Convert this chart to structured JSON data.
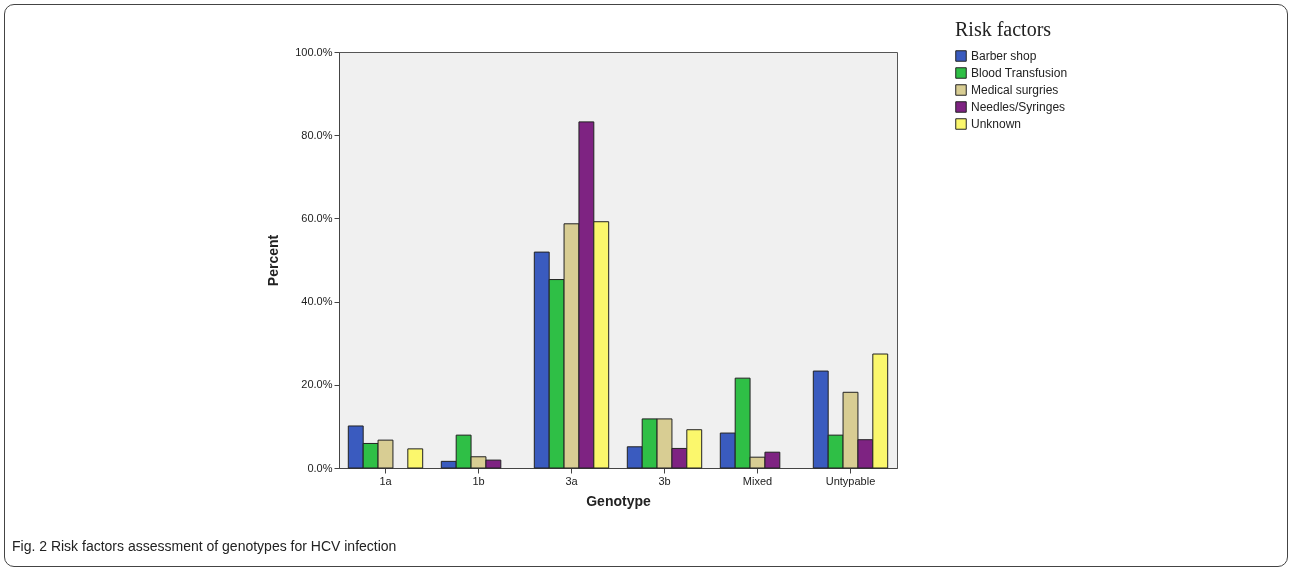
{
  "chart_data": {
    "type": "bar",
    "xlabel": "Genotype",
    "ylabel": "Percent",
    "legend_title": "Risk factors",
    "legend": "top right",
    "categories": [
      "1a",
      "1b",
      "3a",
      "3b",
      "Mixed",
      "Untypable"
    ],
    "series": [
      {
        "name": "Barber shop",
        "color": "#3a5bbf",
        "values": [
          10.1,
          1.6,
          51.9,
          5.1,
          8.4,
          23.3
        ]
      },
      {
        "name": "Blood Transfusion",
        "color": "#2fbf46",
        "values": [
          5.9,
          7.9,
          45.3,
          11.8,
          21.6,
          7.9
        ]
      },
      {
        "name": "Medical surgries",
        "color": "#d8cd93",
        "values": [
          6.7,
          2.7,
          58.7,
          11.8,
          2.6,
          18.2
        ]
      },
      {
        "name": "Needles/Syringes",
        "color": "#7e2382",
        "values": [
          0,
          1.9,
          83.2,
          4.7,
          3.8,
          6.8
        ]
      },
      {
        "name": "Unknown",
        "color": "#fbf76c",
        "values": [
          4.6,
          0,
          59.2,
          9.2,
          0,
          27.4
        ]
      }
    ],
    "ylim": [
      0,
      100
    ],
    "yticks": [
      {
        "value": 0,
        "label": "0.0%"
      },
      {
        "value": 20,
        "label": "20.0%"
      },
      {
        "value": 40,
        "label": "40.0%"
      },
      {
        "value": 60,
        "label": "60.0%"
      },
      {
        "value": 80,
        "label": "80.0%"
      },
      {
        "value": 100,
        "label": "100.0%"
      }
    ],
    "grid": false,
    "annotations": [
      "Fig. 2 Risk factors assessment of genotypes for HCV infection"
    ]
  }
}
